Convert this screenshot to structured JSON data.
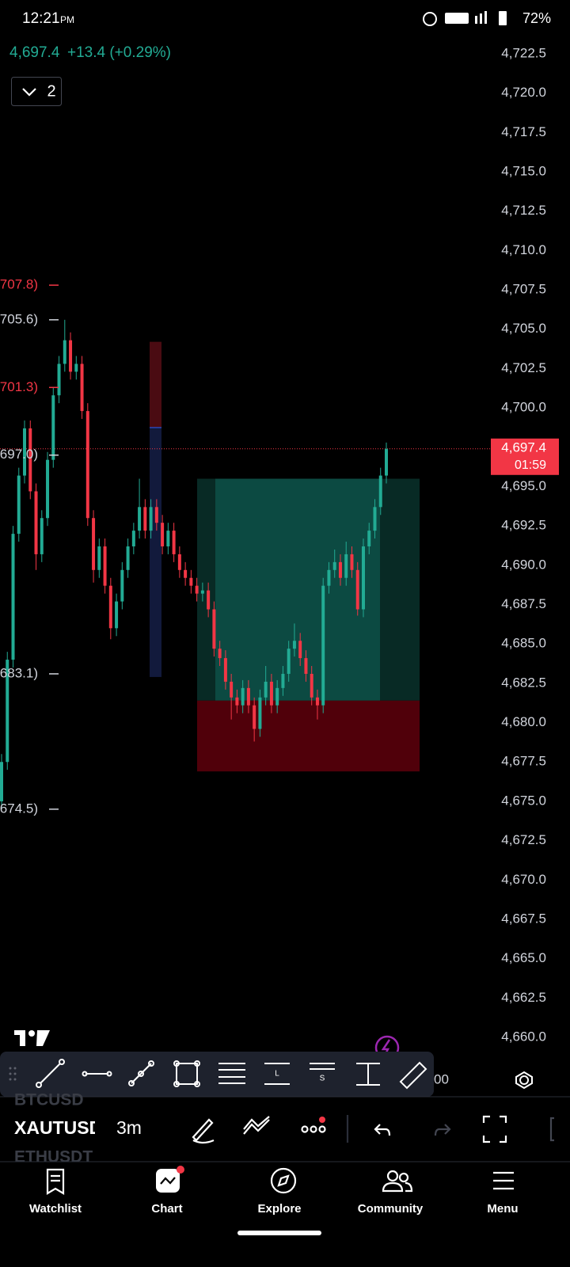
{
  "status_bar": {
    "time": "12:21",
    "ampm": "PM",
    "battery": "72%"
  },
  "header": {
    "price": "4,697.4",
    "change": "+13.4 (+0.29%)",
    "layouts": "2"
  },
  "chart_data": {
    "type": "candlestick",
    "up_color": "#22ab94",
    "down_color": "#f23645",
    "ylim": [
      4660.0,
      4722.5
    ],
    "yticks": [
      {
        "value": 4722.5,
        "label": "4,722.5"
      },
      {
        "value": 4720.0,
        "label": "4,720.0"
      },
      {
        "value": 4717.5,
        "label": "4,717.5"
      },
      {
        "value": 4715.0,
        "label": "4,715.0"
      },
      {
        "value": 4712.5,
        "label": "4,712.5"
      },
      {
        "value": 4710.0,
        "label": "4,710.0"
      },
      {
        "value": 4707.5,
        "label": "4,707.5"
      },
      {
        "value": 4705.0,
        "label": "4,705.0"
      },
      {
        "value": 4702.5,
        "label": "4,702.5"
      },
      {
        "value": 4700.0,
        "label": "4,700.0"
      },
      {
        "value": 4697.5,
        "label": "4,697.5"
      },
      {
        "value": 4695.0,
        "label": "4,695.0"
      },
      {
        "value": 4692.5,
        "label": "4,692.5"
      },
      {
        "value": 4690.0,
        "label": "4,690.0"
      },
      {
        "value": 4687.5,
        "label": "4,687.5"
      },
      {
        "value": 4685.0,
        "label": "4,685.0"
      },
      {
        "value": 4682.5,
        "label": "4,682.5"
      },
      {
        "value": 4680.0,
        "label": "4,680.0"
      },
      {
        "value": 4677.5,
        "label": "4,677.5"
      },
      {
        "value": 4675.0,
        "label": "4,675.0"
      },
      {
        "value": 4672.5,
        "label": "4,672.5"
      },
      {
        "value": 4670.0,
        "label": "4,670.0"
      },
      {
        "value": 4667.5,
        "label": "4,667.5"
      },
      {
        "value": 4665.0,
        "label": "4,665.0"
      },
      {
        "value": 4662.5,
        "label": "4,662.5"
      },
      {
        "value": 4660.0,
        "label": "4,660.0"
      }
    ],
    "grid": false,
    "open": [
      4675.0,
      4677.5,
      4684,
      4692,
      4695.7,
      4698.7,
      4694.7,
      4690.7,
      4693,
      4696.7,
      4700.8,
      4702.8,
      4704.3,
      4702.3,
      4702.8,
      4699.8,
      4693,
      4689.7,
      4691.2,
      4688.7,
      4686,
      4687.7,
      4689.7,
      4691.2,
      4692.2,
      4693.7,
      4692.2,
      4693.7,
      4692.7,
      4691.2,
      4692.2,
      4690.7,
      4689.7,
      4689.2,
      4688.7,
      4688.2,
      4688.4,
      4687.2,
      4684.7,
      4684.1,
      4682.6,
      4681.6,
      4681.1,
      4682.2,
      4681.1,
      4679.6,
      4681.6,
      4682.6,
      4681.1,
      4682.2,
      4683.1,
      4684.7,
      4685.2,
      4684.1,
      4683.1,
      4681.6,
      4681.1,
      4688.7,
      4689.7,
      4690.2,
      4689.2,
      4690.7,
      4689.7,
      4687.2,
      4691.2,
      4692.2,
      4693.7,
      4695.7
    ],
    "high": [
      4678.0,
      4684.5,
      4692.5,
      4696.2,
      4699.2,
      4699.2,
      4695.2,
      4693.5,
      4697.2,
      4701.3,
      4703.3,
      4705.6,
      4704.8,
      4703.3,
      4703.3,
      4700.3,
      4693.5,
      4691.7,
      4691.7,
      4689.2,
      4688.2,
      4690.2,
      4691.7,
      4692.7,
      4695.5,
      4694.2,
      4694.2,
      4694.2,
      4693.2,
      4692.7,
      4692.7,
      4691.2,
      4690.2,
      4689.7,
      4689.2,
      4688.9,
      4688.9,
      4687.7,
      4685.2,
      4684.6,
      4683.1,
      4682.1,
      4682.7,
      4682.7,
      4681.6,
      4682.1,
      4683.6,
      4683.1,
      4682.7,
      4683.6,
      4685.2,
      4686.3,
      4685.7,
      4684.6,
      4683.6,
      4682.1,
      4689.2,
      4690.2,
      4691.0,
      4690.7,
      4691.5,
      4691.2,
      4690.2,
      4691.7,
      4692.7,
      4694.2,
      4696.2,
      4697.8
    ],
    "low": [
      4674.5,
      4677.0,
      4683.5,
      4691.5,
      4695.2,
      4694.2,
      4689.7,
      4690.2,
      4692.5,
      4696.2,
      4700.3,
      4702.3,
      4701.8,
      4701.8,
      4699.3,
      4692.5,
      4688.9,
      4689.2,
      4688.2,
      4685.3,
      4685.5,
      4687.2,
      4689.2,
      4690.7,
      4691.7,
      4691.7,
      4691.7,
      4692.2,
      4690.7,
      4690.7,
      4690.2,
      4689.2,
      4688.7,
      4688.2,
      4687.7,
      4687.7,
      4686.7,
      4684.2,
      4683.6,
      4682.1,
      4680.2,
      4680.6,
      4680.6,
      4680.6,
      4678.8,
      4679.1,
      4681.1,
      4680.6,
      4680.6,
      4681.7,
      4682.6,
      4684.2,
      4683.6,
      4682.6,
      4681.1,
      4680.2,
      4680.6,
      4688.2,
      4689.2,
      4688.7,
      4688.7,
      4689.2,
      4686.8,
      4686.7,
      4690.7,
      4691.7,
      4693.2,
      4695.2
    ],
    "close": [
      4677.5,
      4684,
      4692,
      4695.7,
      4698.7,
      4694.7,
      4690.7,
      4693,
      4696.7,
      4700.8,
      4702.8,
      4704.3,
      4702.3,
      4702.8,
      4699.8,
      4693,
      4689.7,
      4691.2,
      4688.7,
      4686,
      4687.7,
      4689.7,
      4691.2,
      4692.2,
      4693.7,
      4692.2,
      4693.7,
      4692.7,
      4691.2,
      4692.2,
      4690.7,
      4689.7,
      4689.2,
      4688.7,
      4688.2,
      4688.4,
      4687.2,
      4684.7,
      4684.1,
      4682.6,
      4681.6,
      4681.1,
      4682.2,
      4681.1,
      4679.6,
      4681.6,
      4682.6,
      4681.1,
      4682.2,
      4683.1,
      4684.7,
      4685.2,
      4684.1,
      4683.1,
      4681.6,
      4681.1,
      4688.7,
      4689.7,
      4690.2,
      4689.2,
      4690.7,
      4689.7,
      4687.2,
      4691.2,
      4692.2,
      4693.7,
      4695.7,
      4697.4
    ],
    "last_price": {
      "value": 4697.4,
      "label": "4,697.4"
    },
    "countdown": "01:59",
    "level_labels": [
      {
        "value": 4707.8,
        "label": "707.8)",
        "color": "#f23645"
      },
      {
        "value": 4705.6,
        "label": "705.6)",
        "color": "#d1d4dc"
      },
      {
        "value": 4701.3,
        "label": "701.3)",
        "color": "#f23645"
      },
      {
        "value": 4697.0,
        "label": "697.0)",
        "color": "#d1d4dc"
      },
      {
        "value": 4683.1,
        "label": "683.1)",
        "color": "#d1d4dc"
      },
      {
        "value": 4674.5,
        "label": "674.5)",
        "color": "#d1d4dc"
      }
    ],
    "position": {
      "target": 4695.5,
      "entry": 4681.4,
      "stop": 4676.9
    },
    "range_bar": {
      "top": 4704.2,
      "middle": 4698.75,
      "bottom": 4682.9
    },
    "time_label": "00"
  },
  "symbols": {
    "previous": "BTCUSD",
    "current": "XAUTUSD",
    "next": "ETHUSDT",
    "interval": "3m"
  },
  "nav": [
    "Watchlist",
    "Chart",
    "Explore",
    "Community",
    "Menu"
  ]
}
